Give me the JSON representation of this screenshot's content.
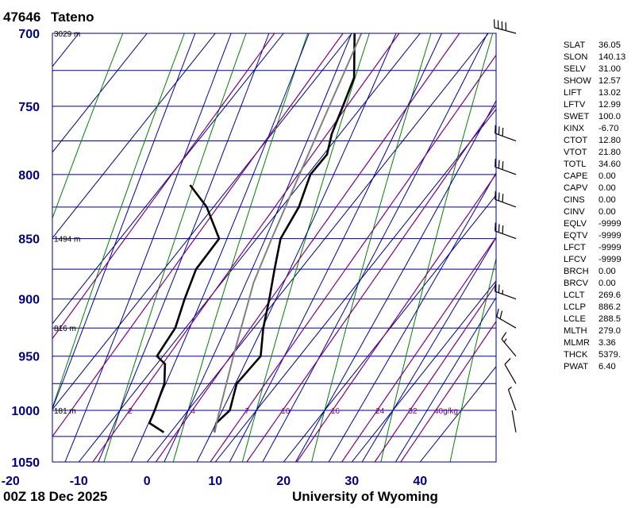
{
  "header": {
    "station_id": "47646",
    "station_name": "Tateno"
  },
  "footer": {
    "valid_time": "00Z 18 Dec 2025",
    "credit": "University of Wyoming"
  },
  "colors": {
    "temperature": "#000000",
    "dewpoint": "#000000",
    "parcel": "#808080",
    "isotherm": "#000080",
    "dry_adiabat": "#008000",
    "moist_adiabat": "#0000a0",
    "mixing_ratio": "#800080",
    "axis_label": "#000080"
  },
  "indices": [
    {
      "key": "SLAT",
      "value": "36.05"
    },
    {
      "key": "SLON",
      "value": "140.13"
    },
    {
      "key": "SELV",
      "value": "31.00"
    },
    {
      "key": "SHOW",
      "value": "12.57"
    },
    {
      "key": "LIFT",
      "value": "13.02"
    },
    {
      "key": "LFTV",
      "value": "12.99"
    },
    {
      "key": "SWET",
      "value": "100.0"
    },
    {
      "key": "KINX",
      "value": "-6.70"
    },
    {
      "key": "CTOT",
      "value": "12.80"
    },
    {
      "key": "VTOT",
      "value": "21.80"
    },
    {
      "key": "TOTL",
      "value": "34.60"
    },
    {
      "key": "CAPE",
      "value": "0.00"
    },
    {
      "key": "CAPV",
      "value": "0.00"
    },
    {
      "key": "CINS",
      "value": "0.00"
    },
    {
      "key": "CINV",
      "value": "0.00"
    },
    {
      "key": "EQLV",
      "value": "-9999"
    },
    {
      "key": "EQTV",
      "value": "-9999"
    },
    {
      "key": "LFCT",
      "value": "-9999"
    },
    {
      "key": "LFCV",
      "value": "-9999"
    },
    {
      "key": "BRCH",
      "value": "0.00"
    },
    {
      "key": "BRCV",
      "value": "0.00"
    },
    {
      "key": "LCLT",
      "value": "269.6"
    },
    {
      "key": "LCLP",
      "value": "886.2"
    },
    {
      "key": "LCLE",
      "value": "288.5"
    },
    {
      "key": "MLTH",
      "value": "279.0"
    },
    {
      "key": "MLMR",
      "value": "3.36"
    },
    {
      "key": "THCK",
      "value": "5379."
    },
    {
      "key": "PWAT",
      "value": "6.40"
    }
  ],
  "chart_data": {
    "type": "line",
    "title": "",
    "xlabel": "",
    "ylabel": "",
    "x_units": "°C",
    "y_units": "hPa",
    "y_scale": "log",
    "y_reversed": true,
    "skew": true,
    "xlim": [
      -20,
      45
    ],
    "ylim": [
      1050,
      700
    ],
    "grid": true,
    "x_tick_labels": [
      "-20",
      "-10",
      "0",
      "10",
      "20",
      "30",
      "40"
    ],
    "x_ticks": [
      -20,
      -10,
      0,
      10,
      20,
      30,
      40
    ],
    "y_tick_labels": [
      "700",
      "750",
      "800",
      "850",
      "900",
      "950",
      "1000",
      "1050"
    ],
    "y_ticks": [
      700,
      750,
      800,
      850,
      900,
      950,
      1000,
      1050
    ],
    "isobars": [
      700,
      725,
      750,
      775,
      800,
      825,
      850,
      875,
      900,
      925,
      950,
      975,
      1000,
      1025,
      1050
    ],
    "height_labels": [
      {
        "p": 700,
        "text": "3029 m"
      },
      {
        "p": 850,
        "text": "1494 m"
      },
      {
        "p": 925,
        "text": "816 m"
      },
      {
        "p": 1000,
        "text": "181 m"
      }
    ],
    "isotherms": [
      -120,
      -110,
      -100,
      -90,
      -80,
      -70,
      -60,
      -50,
      -40,
      -30,
      -20,
      -10,
      0,
      10,
      20,
      30,
      40
    ],
    "dry_adiabats": [
      -30,
      -20,
      -10,
      0,
      10,
      20,
      30,
      40,
      50,
      60,
      70,
      80
    ],
    "moist_adiabats": [
      -20,
      -15,
      -10,
      -5,
      0,
      5,
      10,
      15,
      20,
      25,
      30,
      35
    ],
    "mixing_ratio_lines": [
      {
        "w": 0.4,
        "label": ""
      },
      {
        "w": 1,
        "label": ""
      },
      {
        "w": 2,
        "label": "2"
      },
      {
        "w": 4,
        "label": "4"
      },
      {
        "w": 7,
        "label": "7"
      },
      {
        "w": 10,
        "label": "10"
      },
      {
        "w": 16,
        "label": "16"
      },
      {
        "w": 24,
        "label": "24"
      },
      {
        "w": 32,
        "label": "32"
      },
      {
        "w": 40,
        "label": "40g/kg"
      }
    ],
    "series": [
      {
        "key": "temperature",
        "points": [
          {
            "p": 1021,
            "t": 6.4
          },
          {
            "p": 1012,
            "t": 5.6
          },
          {
            "p": 1000,
            "t": 6.1
          },
          {
            "p": 975,
            "t": 4.0
          },
          {
            "p": 950,
            "t": 4.3
          },
          {
            "p": 925,
            "t": 1.4
          },
          {
            "p": 900,
            "t": -1.1
          },
          {
            "p": 875,
            "t": -3.8
          },
          {
            "p": 850,
            "t": -6.5
          },
          {
            "p": 825,
            "t": -7.5
          },
          {
            "p": 800,
            "t": -9.6
          },
          {
            "p": 785,
            "t": -9.5
          },
          {
            "p": 770,
            "t": -11.2
          },
          {
            "p": 750,
            "t": -12.8
          },
          {
            "p": 730,
            "t": -14.5
          },
          {
            "p": 700,
            "t": -19.6
          }
        ]
      },
      {
        "key": "dewpoint",
        "points": [
          {
            "p": 1021,
            "t": -1.0
          },
          {
            "p": 1012,
            "t": -4.2
          },
          {
            "p": 1000,
            "t": -4.9
          },
          {
            "p": 975,
            "t": -6.6
          },
          {
            "p": 957,
            "t": -8.8
          },
          {
            "p": 950,
            "t": -10.9
          },
          {
            "p": 925,
            "t": -11.5
          },
          {
            "p": 900,
            "t": -13.5
          },
          {
            "p": 875,
            "t": -15.3
          },
          {
            "p": 850,
            "t": -15.5
          },
          {
            "p": 825,
            "t": -21.0
          },
          {
            "p": 808,
            "t": -26.0
          }
        ]
      },
      {
        "key": "parcel",
        "points": [
          {
            "p": 1021,
            "t": 6.4
          },
          {
            "p": 1000,
            "t": 4.6
          },
          {
            "p": 950,
            "t": 0.3
          },
          {
            "p": 886.2,
            "t": -5.3
          },
          {
            "p": 850,
            "t": -7.8
          },
          {
            "p": 800,
            "t": -11.2
          },
          {
            "p": 750,
            "t": -14.8
          },
          {
            "p": 700,
            "t": -18.6
          }
        ]
      }
    ],
    "wind_barbs": [
      {
        "p": 1021,
        "dir": 350,
        "spd": 3
      },
      {
        "p": 1000,
        "dir": 340,
        "spd": 5
      },
      {
        "p": 975,
        "dir": 330,
        "spd": 10
      },
      {
        "p": 950,
        "dir": 320,
        "spd": 15
      },
      {
        "p": 925,
        "dir": 300,
        "spd": 20
      },
      {
        "p": 900,
        "dir": 290,
        "spd": 25
      },
      {
        "p": 850,
        "dir": 290,
        "spd": 30
      },
      {
        "p": 825,
        "dir": 290,
        "spd": 30
      },
      {
        "p": 800,
        "dir": 290,
        "spd": 30
      },
      {
        "p": 775,
        "dir": 290,
        "spd": 30
      },
      {
        "p": 700,
        "dir": 285,
        "spd": 40
      }
    ]
  }
}
